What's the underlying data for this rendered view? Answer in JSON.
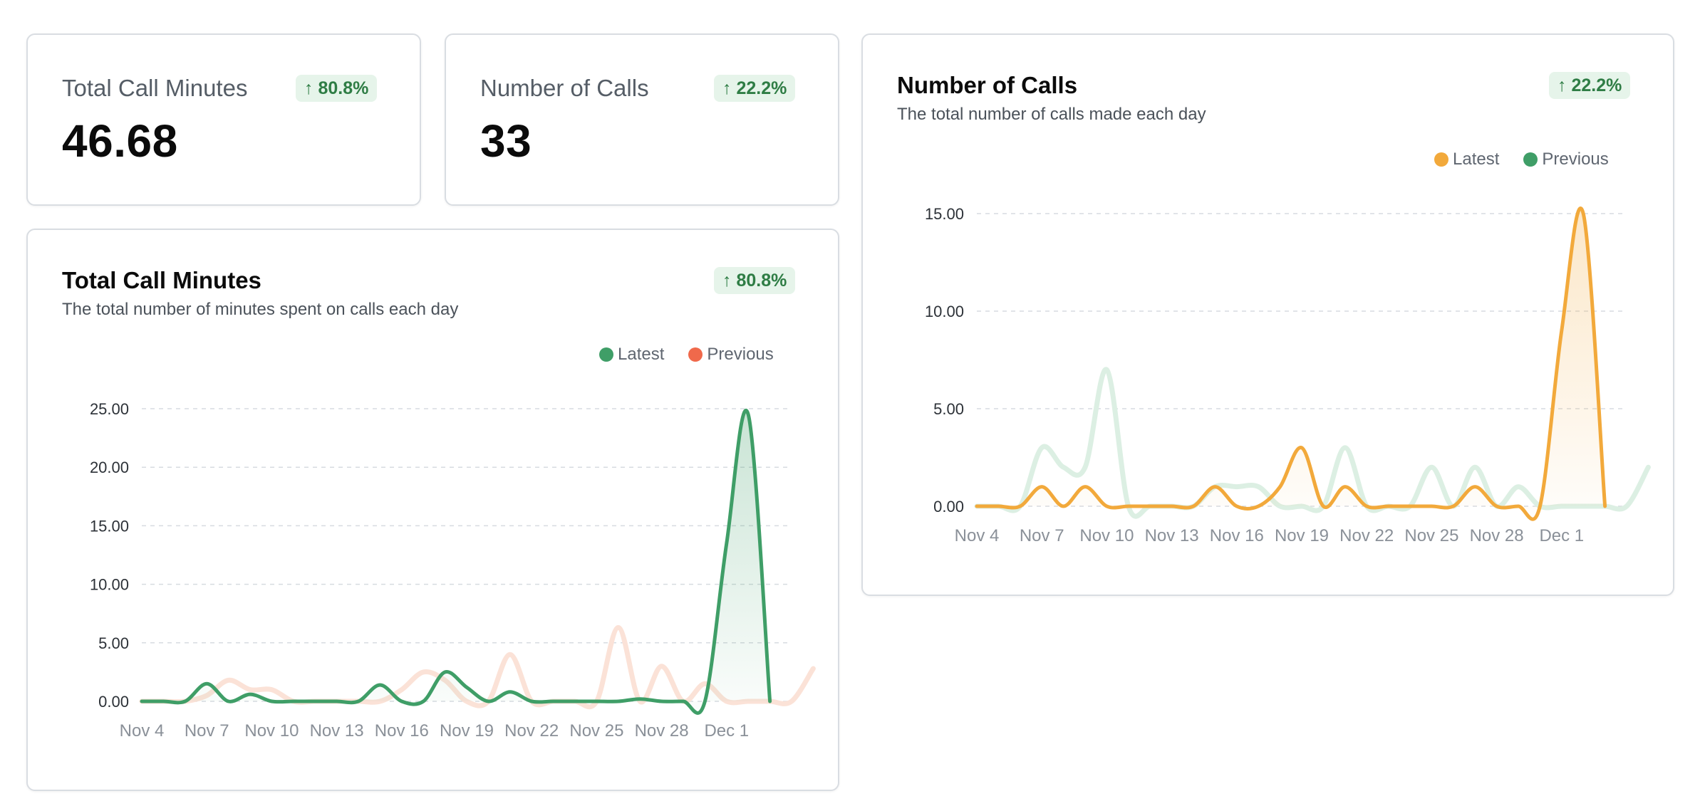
{
  "stat_cards": [
    {
      "label": "Total Call Minutes",
      "value": "46.68",
      "badge": "↑ 80.8%"
    },
    {
      "label": "Number of Calls",
      "value": "33",
      "badge": "↑ 22.2%"
    }
  ],
  "colors": {
    "green": "#3f9e67",
    "green_faded": "#dcefe3",
    "orange": "#f2a93b",
    "orange_faded": "#fbe2d7",
    "coral": "#f0694b",
    "badge_bg": "#e6f4ea",
    "badge_text": "#2f7d45"
  },
  "chart_data": [
    {
      "type": "line",
      "title": "Total Call Minutes",
      "subtitle": "The total number of minutes spent on calls each day",
      "badge": "↑ 80.8%",
      "legend": [
        {
          "name": "Latest",
          "color": "#3f9e67"
        },
        {
          "name": "Previous",
          "color": "#f0694b"
        }
      ],
      "x_ticks": [
        "Nov 4",
        "Nov 7",
        "Nov 10",
        "Nov 13",
        "Nov 16",
        "Nov 19",
        "Nov 22",
        "Nov 25",
        "Nov 28",
        "Dec 1"
      ],
      "y_ticks": [
        "0.00",
        "5.00",
        "10.00",
        "15.00",
        "20.00",
        "25.00"
      ],
      "ylim": [
        0,
        25
      ],
      "series": [
        {
          "name": "Previous",
          "values": [
            0,
            0,
            0,
            0.5,
            1.8,
            1.0,
            1.0,
            0,
            0,
            0,
            0,
            0,
            1.0,
            2.5,
            1.8,
            0,
            0,
            4.0,
            0,
            0,
            0,
            0,
            6.3,
            0,
            3.0,
            0,
            1.5,
            0,
            0,
            0,
            0,
            2.8
          ]
        },
        {
          "name": "Latest",
          "values": [
            0,
            0,
            0,
            1.5,
            0,
            0.6,
            0,
            0,
            0,
            0,
            0,
            1.4,
            0,
            0,
            2.5,
            1.2,
            0,
            0.8,
            0,
            0,
            0,
            0,
            0,
            0.2,
            0,
            0,
            0,
            13.5,
            24.5,
            0
          ]
        }
      ]
    },
    {
      "type": "line",
      "title": "Number of Calls",
      "subtitle": "The total number of calls made each day",
      "badge": "↑ 22.2%",
      "legend": [
        {
          "name": "Latest",
          "color": "#f2a93b"
        },
        {
          "name": "Previous",
          "color": "#3f9e67"
        }
      ],
      "x_ticks": [
        "Nov 4",
        "Nov 7",
        "Nov 10",
        "Nov 13",
        "Nov 16",
        "Nov 19",
        "Nov 22",
        "Nov 25",
        "Nov 28",
        "Dec 1"
      ],
      "y_ticks": [
        "0.00",
        "5.00",
        "10.00",
        "15.00"
      ],
      "ylim": [
        0,
        15
      ],
      "series": [
        {
          "name": "Previous",
          "values": [
            0,
            0,
            0,
            3,
            2,
            2,
            7,
            0,
            0,
            0,
            0,
            1,
            1,
            1,
            0,
            0,
            0,
            3,
            0,
            0,
            0,
            2,
            0,
            2,
            0,
            1,
            0,
            0,
            0,
            0,
            0,
            2
          ]
        },
        {
          "name": "Latest",
          "values": [
            0,
            0,
            0,
            1,
            0,
            1,
            0,
            0,
            0,
            0,
            0,
            1,
            0,
            0,
            1,
            3,
            0,
            1,
            0,
            0,
            0,
            0,
            0,
            1,
            0,
            0,
            0,
            9,
            15,
            0
          ]
        }
      ]
    }
  ]
}
